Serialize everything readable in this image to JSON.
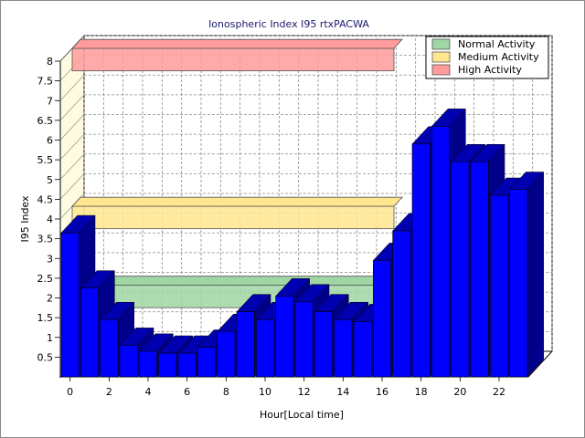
{
  "chart_data": {
    "type": "bar",
    "title": "Ionospheric Index I95 rtxPACWA",
    "xlabel": "Hour[Local time]",
    "ylabel": "I95 Index",
    "ylim": [
      0,
      8
    ],
    "yticks": [
      "0.5",
      "1",
      "1.5",
      "2",
      "2.5",
      "3",
      "3.5",
      "4",
      "4.5",
      "5",
      "5.5",
      "6",
      "6.5",
      "7",
      "7.5",
      "8"
    ],
    "xticks": [
      "0",
      "2",
      "4",
      "6",
      "8",
      "10",
      "12",
      "14",
      "16",
      "18",
      "20",
      "22"
    ],
    "categories": [
      0,
      1,
      2,
      3,
      4,
      5,
      6,
      7,
      8,
      9,
      10,
      11,
      12,
      13,
      14,
      15,
      16,
      17,
      18,
      19,
      20,
      21,
      22,
      23
    ],
    "series": [
      {
        "values": [
          3.65,
          2.25,
          1.45,
          0.8,
          0.65,
          0.6,
          0.6,
          0.75,
          1.15,
          1.65,
          1.45,
          2.05,
          1.9,
          1.65,
          1.45,
          1.4,
          2.95,
          3.7,
          5.9,
          6.35,
          5.45,
          5.45,
          4.6,
          4.75
        ],
        "color": "#0000ff"
      }
    ],
    "bands": [
      {
        "name": "Normal Activity",
        "range": [
          2,
          2
        ],
        "color": "#9fd6a3"
      },
      {
        "name": "Medium Activity",
        "range": [
          4,
          4
        ],
        "color": "#ffe68f"
      },
      {
        "name": "High Activity",
        "range": [
          8,
          8
        ],
        "color": "#ff9b9b"
      }
    ],
    "grid": true,
    "legend_position": "top-right"
  }
}
